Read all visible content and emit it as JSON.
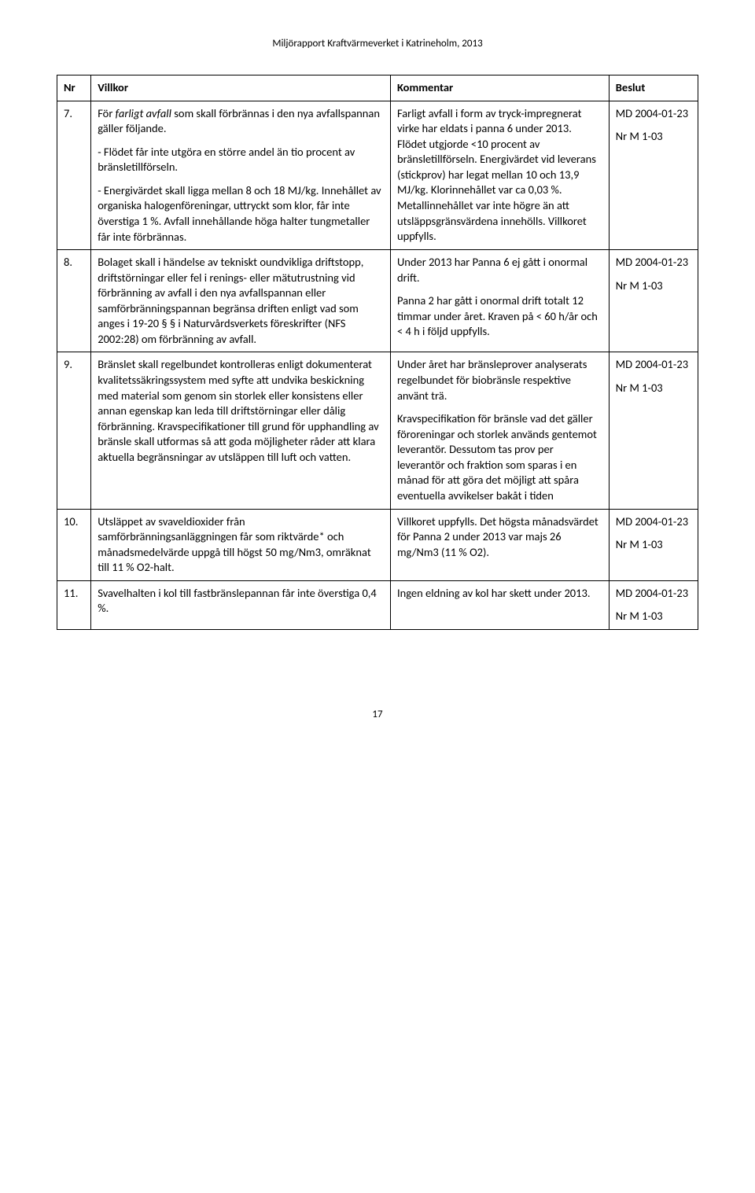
{
  "doc": {
    "header": "Miljörapport Kraftvärmeverket i Katrineholm, 2013",
    "page_number": "17"
  },
  "table": {
    "headers": {
      "nr": "Nr",
      "villkor": "Villkor",
      "kommentar": "Kommentar",
      "beslut": "Beslut"
    },
    "rows": [
      {
        "nr": "7.",
        "villkor_p1a": "För ",
        "villkor_p1b": "farligt avfall",
        "villkor_p1c": " som skall förbrännas i den nya avfallspannan gäller följande.",
        "villkor_p2": "- Flödet får inte utgöra en större andel än tio procent av bränsletillförseln.",
        "villkor_p3": "- Energivärdet skall ligga mellan 8 och 18 MJ/kg. Innehållet av organiska halogenföreningar, uttryckt som klor, får inte överstiga 1 %. Avfall innehållande höga halter tungmetaller får inte förbrännas.",
        "kommentar_p1": "Farligt avfall i form av tryck-impregnerat virke har eldats i panna 6 under 2013. Flödet utgjorde <10 procent av bränsletillförseln. Energivärdet vid leverans (stickprov) har legat mellan 10 och 13,9 MJ/kg. Klorinnehållet var ca 0,03 %. Metallinnehållet var inte högre än att utsläppsgränsvärdena innehölls. Villkoret uppfylls.",
        "beslut_p1": "MD 2004-01-23",
        "beslut_p2": "Nr M 1-03"
      },
      {
        "nr": "8.",
        "villkor_p1": "Bolaget skall i händelse av tekniskt oundvikliga driftstopp, driftstörningar eller fel i renings- eller mätutrustning vid förbränning av avfall i den nya avfallspannan eller samförbränningspannan begränsa driften enligt vad som anges i 19-20 § § i Naturvårdsverkets föreskrifter (NFS 2002:28) om förbränning av avfall.",
        "kommentar_p1": "Under 2013 har Panna 6 ej gått i onormal drift.",
        "kommentar_p2": "Panna 2 har gått i onormal drift totalt 12 timmar under året. Kraven på < 60 h/år och < 4 h i följd uppfylls.",
        "beslut_p1": "MD 2004-01-23",
        "beslut_p2": "Nr M 1-03"
      },
      {
        "nr": "9.",
        "villkor_p1": "Bränslet skall regelbundet kontrolleras enligt dokumenterat kvalitetssäkringssystem med syfte att undvika beskickning med material som genom sin storlek eller konsistens eller annan egenskap kan leda till driftstörningar eller dålig förbränning. Kravspecifikationer till grund för upphandling av bränsle skall utformas så att goda möjligheter råder att klara aktuella begränsningar av utsläppen till luft och vatten.",
        "kommentar_p1": "Under året har bränsleprover analyserats regelbundet för biobränsle respektive använt trä.",
        "kommentar_p2": "Kravspecifikation för bränsle vad det gäller föroreningar och storlek används gentemot leverantör. Dessutom tas prov per leverantör och fraktion som sparas i en månad för att göra det möjligt att spåra eventuella avvikelser bakåt i tiden",
        "beslut_p1": "MD 2004-01-23",
        "beslut_p2": "Nr M 1-03"
      },
      {
        "nr": "10.",
        "villkor_p1": "Utsläppet av svaveldioxider från samförbränningsanläggningen får som riktvärde* och månadsmedelvärde uppgå till högst 50 mg/Nm3, omräknat till 11 % O2-halt.",
        "kommentar_p1": "Villkoret uppfylls. Det högsta månadsvärdet för Panna 2 under 2013 var majs 26 mg/Nm3 (11 % O2).",
        "beslut_p1": "MD 2004-01-23",
        "beslut_p2": "Nr M 1-03"
      },
      {
        "nr": "11.",
        "villkor_p1": "Svavelhalten i kol till fastbränslepannan får inte överstiga 0,4 %.",
        "kommentar_p1": "Ingen eldning av kol har skett under 2013.",
        "beslut_p1": "MD 2004-01-23",
        "beslut_p2": "Nr M 1-03"
      }
    ]
  }
}
